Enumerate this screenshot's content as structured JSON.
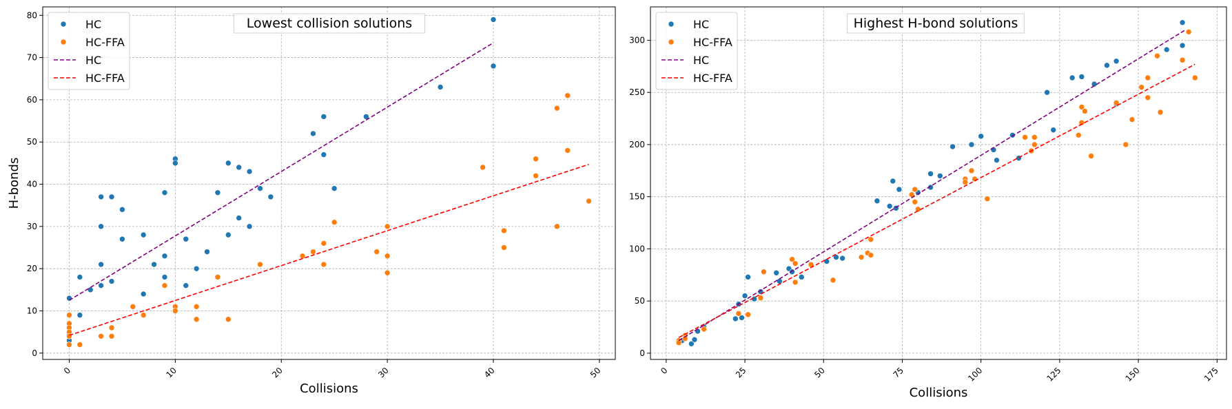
{
  "chart_data": [
    {
      "type": "scatter",
      "title": "Lowest collision solutions",
      "xlabel": "Collisions",
      "ylabel": "H-bonds",
      "xlim": [
        -2.5,
        51.5
      ],
      "ylim": [
        -1.5,
        82
      ],
      "xticks": [
        0,
        10,
        20,
        30,
        40,
        50
      ],
      "yticks": [
        0,
        10,
        20,
        30,
        40,
        50,
        60,
        70,
        80
      ],
      "grid": true,
      "legend_position": "top-left",
      "series": [
        {
          "name": "HC",
          "kind": "points",
          "color": "#1f77b4",
          "x": [
            0,
            0,
            0,
            1,
            1,
            2,
            3,
            3,
            3,
            3,
            3,
            4,
            4,
            5,
            5,
            7,
            7,
            8,
            9,
            9,
            9,
            10,
            10,
            11,
            11,
            12,
            13,
            14,
            15,
            15,
            16,
            16,
            17,
            17,
            18,
            19,
            23,
            24,
            24,
            25,
            28,
            35,
            40,
            40
          ],
          "y": [
            13,
            3,
            4,
            18,
            9,
            15,
            37,
            30,
            21,
            16,
            30,
            37,
            17,
            34,
            27,
            28,
            14,
            21,
            38,
            23,
            18,
            46,
            45,
            27,
            16,
            20,
            24,
            38,
            45,
            28,
            44,
            32,
            43,
            30,
            39,
            37,
            52,
            56,
            47,
            39,
            56,
            63,
            79,
            68
          ]
        },
        {
          "name": "HC-FFA",
          "kind": "points",
          "color": "#ff7f0e",
          "x": [
            0,
            0,
            0,
            0,
            0,
            0,
            1,
            3,
            4,
            4,
            6,
            7,
            9,
            10,
            10,
            12,
            12,
            14,
            15,
            18,
            22,
            23,
            24,
            24,
            25,
            29,
            30,
            30,
            30,
            39,
            41,
            41,
            44,
            44,
            46,
            46,
            47,
            47,
            49
          ],
          "y": [
            9,
            7,
            6,
            5,
            4,
            2,
            2,
            4,
            6,
            4,
            11,
            9,
            16,
            11,
            10,
            11,
            8,
            18,
            8,
            21,
            23,
            24,
            26,
            21,
            31,
            24,
            30,
            23,
            19,
            44,
            29,
            25,
            46,
            42,
            58,
            30,
            61,
            48,
            36
          ]
        },
        {
          "name": "HC",
          "kind": "trend",
          "color": "#800080",
          "x": [
            0,
            40
          ],
          "y": [
            12.5,
            73.5
          ]
        },
        {
          "name": "HC-FFA",
          "kind": "trend",
          "color": "#ff0000",
          "x": [
            0,
            49
          ],
          "y": [
            4.2,
            44.7
          ]
        }
      ]
    },
    {
      "type": "scatter",
      "title": "Highest H-bond solutions",
      "xlabel": "Collisions",
      "ylabel": "",
      "xlim": [
        -5,
        178
      ],
      "ylim": [
        -6,
        332
      ],
      "xticks": [
        0,
        25,
        50,
        75,
        100,
        125,
        150,
        175
      ],
      "yticks": [
        0,
        50,
        100,
        150,
        200,
        250,
        300
      ],
      "grid": true,
      "legend_position": "top-left",
      "series": [
        {
          "name": "HC",
          "kind": "points",
          "color": "#1f77b4",
          "x": [
            5,
            6,
            8,
            9,
            10,
            12,
            22,
            23,
            24,
            25,
            26,
            28,
            30,
            35,
            36,
            39,
            40,
            43,
            51,
            54,
            56,
            67,
            71,
            72,
            73,
            74,
            80,
            84,
            84,
            87,
            91,
            97,
            100,
            104,
            105,
            110,
            112,
            121,
            123,
            129,
            131,
            132,
            136,
            140,
            143,
            143,
            159,
            164,
            164
          ],
          "y": [
            12,
            16,
            9,
            13,
            21,
            25,
            33,
            47,
            34,
            55,
            73,
            52,
            59,
            77,
            69,
            81,
            78,
            73,
            88,
            92,
            91,
            146,
            141,
            165,
            139,
            157,
            154,
            172,
            159,
            170,
            198,
            200,
            208,
            195,
            185,
            209,
            187,
            250,
            214,
            264,
            209,
            265,
            258,
            276,
            239,
            280,
            291,
            317,
            295
          ],
          "note": ""
        },
        {
          "name": "HC-FFA",
          "kind": "points",
          "color": "#ff7f0e",
          "x": [
            4,
            4,
            6,
            6,
            12,
            23,
            26,
            30,
            31,
            40,
            41,
            41,
            46,
            53,
            62,
            64,
            65,
            65,
            78,
            79,
            79,
            80,
            95,
            95,
            97,
            98,
            102,
            114,
            116,
            117,
            117,
            131,
            132,
            132,
            133,
            135,
            143,
            146,
            148,
            151,
            153,
            153,
            156,
            157,
            164,
            166,
            168
          ],
          "y": [
            12,
            10,
            17,
            14,
            23,
            38,
            37,
            53,
            78,
            90,
            86,
            68,
            85,
            70,
            92,
            96,
            94,
            109,
            152,
            157,
            145,
            138,
            167,
            164,
            175,
            167,
            148,
            207,
            194,
            207,
            200,
            209,
            236,
            221,
            232,
            189,
            240,
            200,
            224,
            255,
            264,
            245,
            285,
            231,
            281,
            308,
            264
          ]
        },
        {
          "name": "HC",
          "kind": "trend",
          "color": "#800080",
          "x": [
            4,
            165
          ],
          "y": [
            12,
            310
          ]
        },
        {
          "name": "HC-FFA",
          "kind": "trend",
          "color": "#ff0000",
          "x": [
            4,
            168
          ],
          "y": [
            15,
            277
          ]
        }
      ]
    }
  ]
}
